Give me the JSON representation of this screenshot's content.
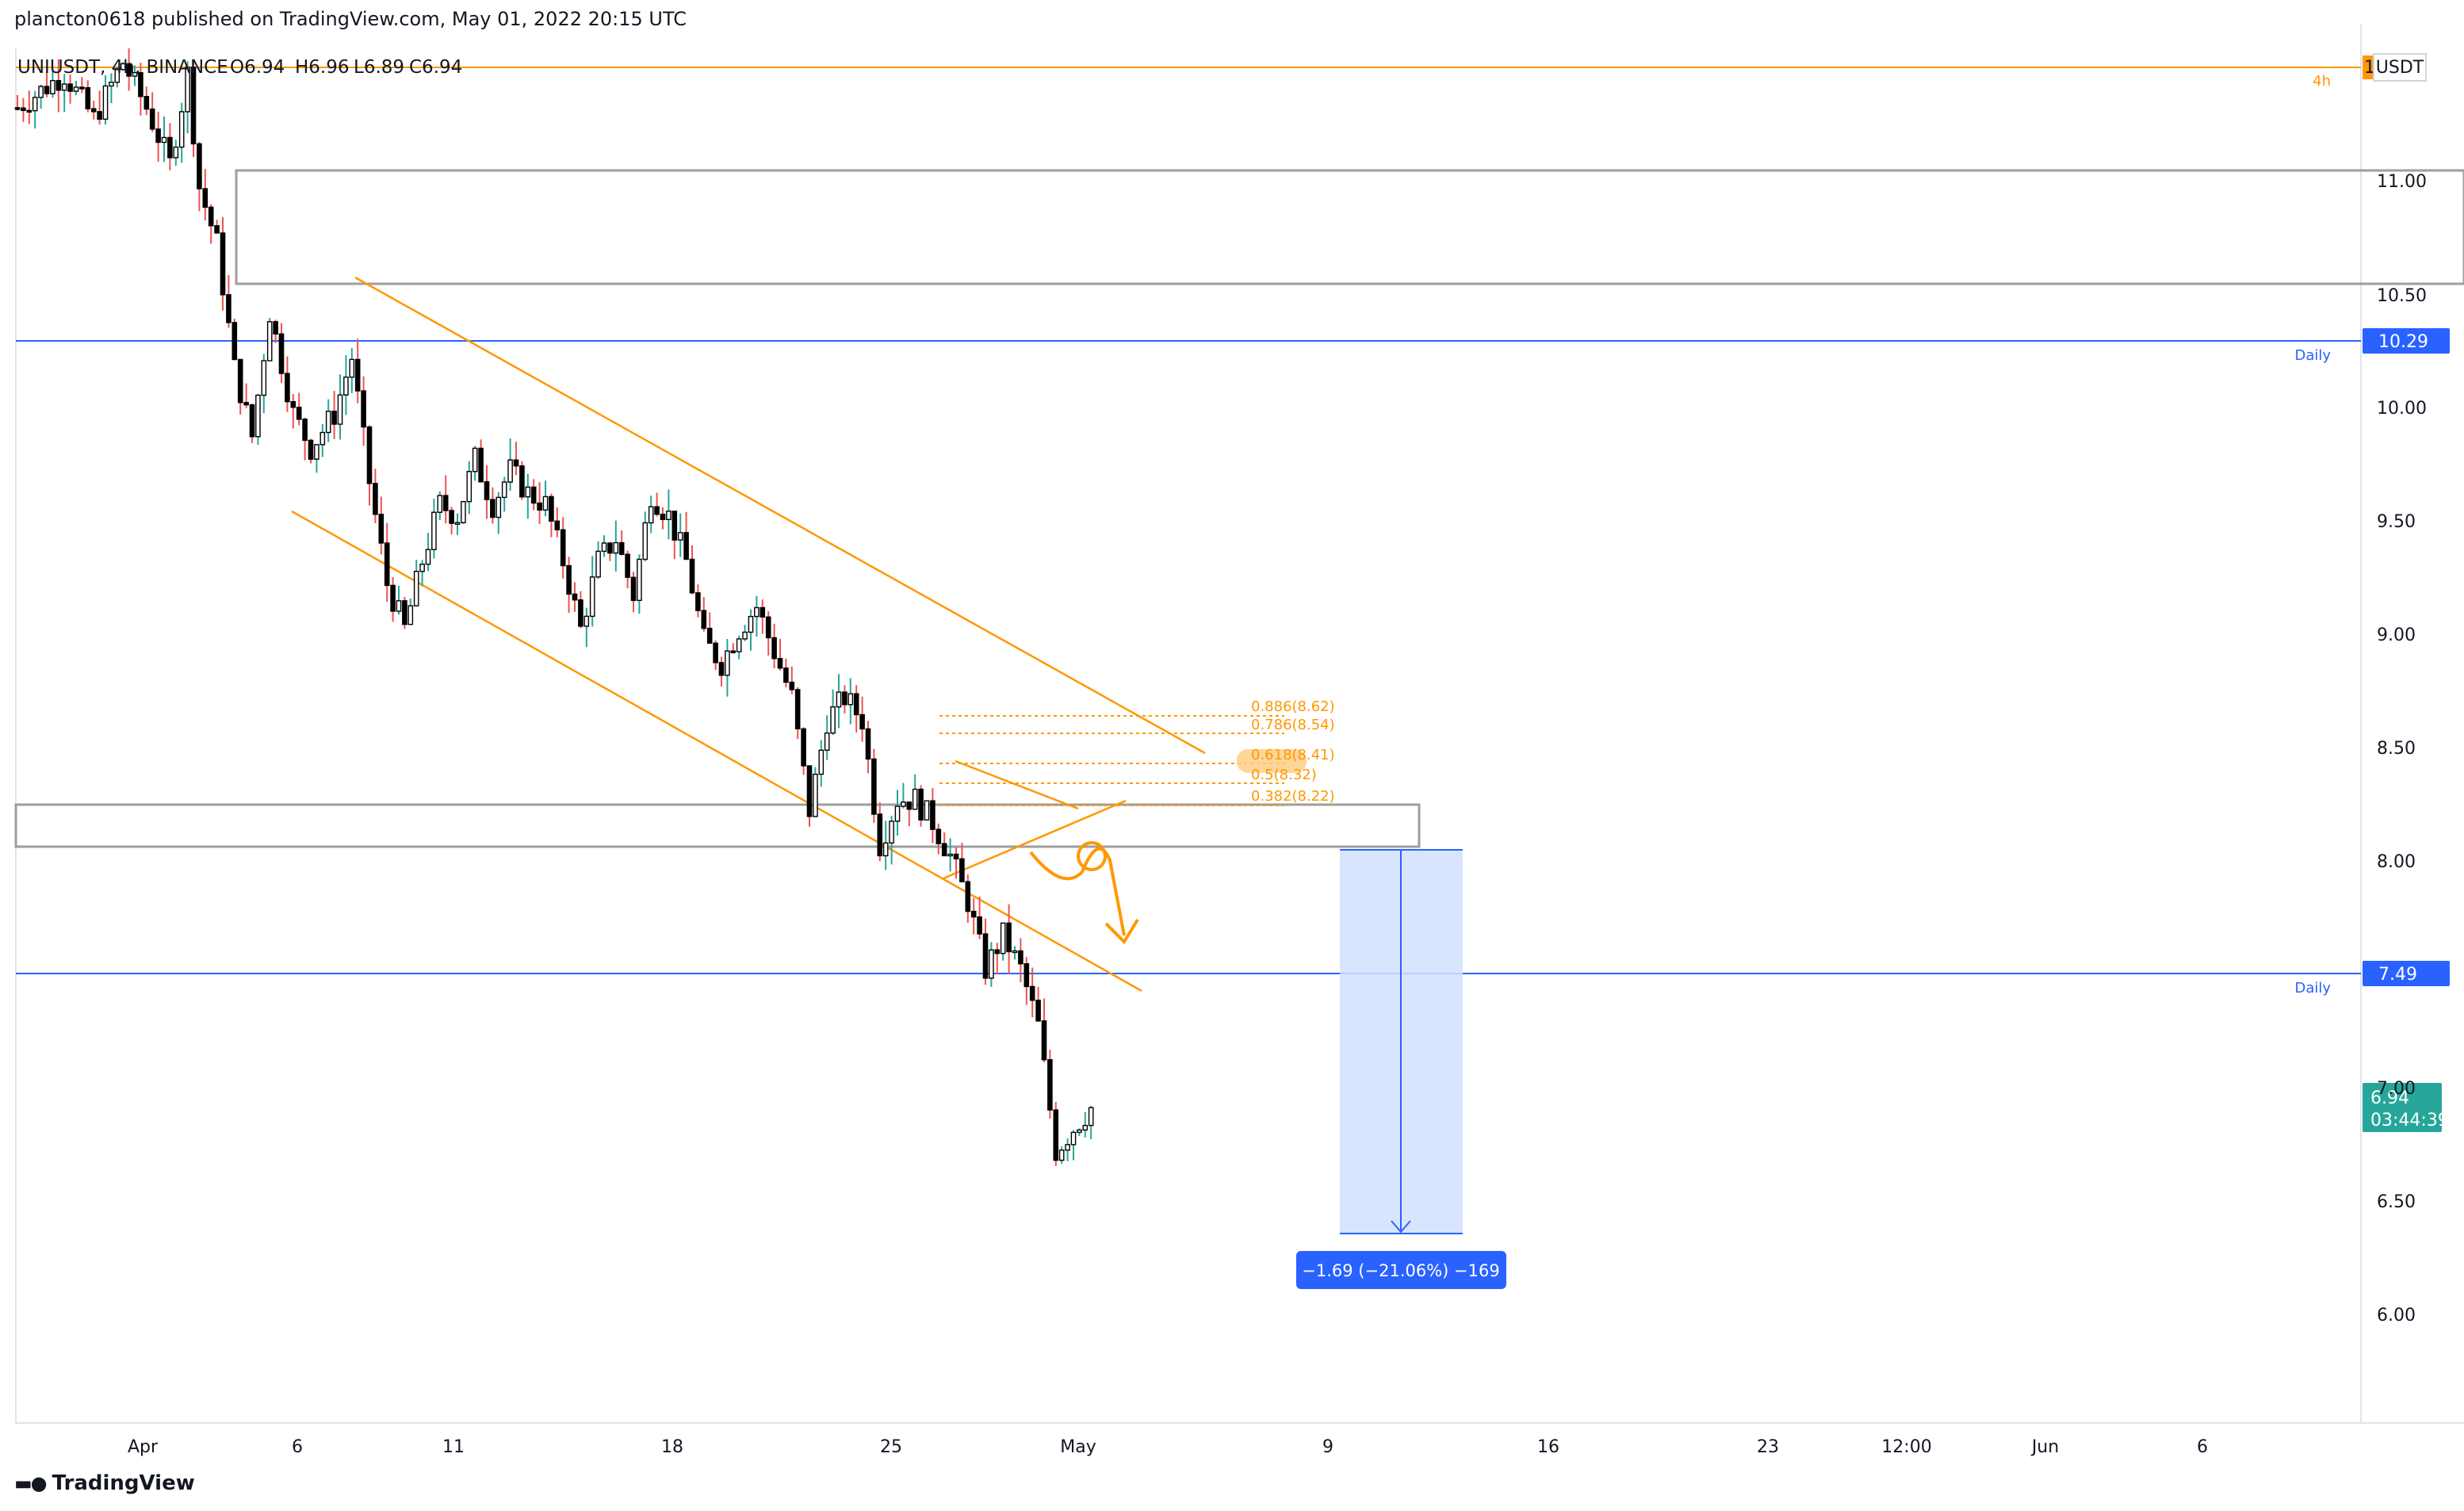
{
  "header": {
    "published": "plancton0618 published on TradingView.com, May 01, 2022 20:15 UTC"
  },
  "symbol_bar": {
    "symbol": "UNIUSDT, 4h, BINANCE",
    "open": "O6.94",
    "high": "H6.96",
    "low": "L6.89",
    "close": "C6.94"
  },
  "price_tags": {
    "top_label": "1",
    "currency": "USDT",
    "daily_upper": "10.29",
    "daily_lower": "7.49",
    "last_price": "6.94",
    "countdown": "03:44:39"
  },
  "line_labels": {
    "h4": "4h",
    "daily_upper": "Daily",
    "daily_lower": "Daily"
  },
  "fib_labels": [
    "0.886(8.62)",
    "0.786(8.54)",
    "0.618(8.41)",
    "0.5(8.32)",
    "0.382(8.22)"
  ],
  "measure_label": "−1.69 (−21.06%) −169",
  "footer": {
    "brand": "TradingView"
  },
  "colors": {
    "up": "#26a69a",
    "down": "#ef5350",
    "body": "#000000",
    "orange": "#ff9800",
    "blue": "#2962ff",
    "zone_gray": "#888888",
    "measure_fill": "#d2e0ff",
    "last_price_bg": "#26a69a"
  },
  "chart_data": {
    "type": "candlestick",
    "symbol": "UNIUSDT",
    "interval": "4h",
    "exchange": "BINANCE",
    "y_axis": {
      "ticks": [
        "11.00",
        "10.50",
        "10.00",
        "9.50",
        "9.00",
        "8.50",
        "8.00",
        "7.00",
        "6.50",
        "6.00"
      ],
      "range": [
        5.5,
        11.55
      ]
    },
    "x_axis": {
      "ticks": [
        "Apr",
        "6",
        "11",
        "18",
        "25",
        "May",
        "9",
        "16",
        "23",
        "12:00",
        "Jun",
        "6"
      ]
    },
    "horizontal_lines": [
      {
        "label": "4h",
        "value": 11.5,
        "color": "orange"
      },
      {
        "label": "Daily",
        "value": 10.29,
        "color": "blue"
      },
      {
        "label": "Daily",
        "value": 7.49,
        "color": "blue"
      }
    ],
    "zones": [
      {
        "from": 10.55,
        "to": 11.05
      },
      {
        "from": 8.05,
        "to": 8.24
      }
    ],
    "fibonacci": [
      {
        "level": 0.886,
        "value": 8.62
      },
      {
        "level": 0.786,
        "value": 8.54
      },
      {
        "level": 0.618,
        "value": 8.41
      },
      {
        "level": 0.5,
        "value": 8.32
      },
      {
        "level": 0.382,
        "value": 8.22
      }
    ],
    "measure": {
      "from": 8.03,
      "to": 6.34,
      "change": -1.69,
      "percent": -21.06,
      "ticks": -169
    },
    "last": {
      "open": 6.94,
      "high": 6.96,
      "low": 6.89,
      "close": 6.94
    },
    "path": [
      [
        0,
        11.35
      ],
      [
        8,
        11.5
      ],
      [
        13,
        11.3
      ],
      [
        18,
        11.55
      ],
      [
        22,
        11.35
      ],
      [
        26,
        11.1
      ],
      [
        29,
        11.5
      ],
      [
        31,
        11.0
      ],
      [
        34,
        10.75
      ],
      [
        37,
        10.2
      ],
      [
        40,
        9.9
      ],
      [
        43,
        10.45
      ],
      [
        47,
        10.0
      ],
      [
        50,
        9.85
      ],
      [
        54,
        10.0
      ],
      [
        57,
        10.25
      ],
      [
        60,
        9.7
      ],
      [
        63,
        9.25
      ],
      [
        66,
        9.05
      ],
      [
        69,
        9.35
      ],
      [
        72,
        9.6
      ],
      [
        75,
        9.55
      ],
      [
        78,
        9.8
      ],
      [
        81,
        9.6
      ],
      [
        84,
        9.75
      ],
      [
        87,
        9.65
      ],
      [
        90,
        9.6
      ],
      [
        93,
        9.35
      ],
      [
        96,
        9.05
      ],
      [
        99,
        9.35
      ],
      [
        102,
        9.45
      ],
      [
        105,
        9.2
      ],
      [
        108,
        9.65
      ],
      [
        111,
        9.55
      ],
      [
        114,
        9.35
      ],
      [
        117,
        9.0
      ],
      [
        120,
        8.9
      ],
      [
        123,
        9.05
      ],
      [
        126,
        9.15
      ],
      [
        129,
        8.95
      ],
      [
        132,
        8.75
      ],
      [
        135,
        8.25
      ],
      [
        138,
        8.65
      ],
      [
        141,
        8.75
      ],
      [
        144,
        8.65
      ],
      [
        147,
        8.1
      ],
      [
        150,
        8.3
      ],
      [
        153,
        8.3
      ],
      [
        156,
        8.2
      ],
      [
        159,
        8.05
      ],
      [
        162,
        7.85
      ],
      [
        165,
        7.55
      ],
      [
        168,
        7.7
      ],
      [
        171,
        7.55
      ],
      [
        174,
        7.3
      ],
      [
        177,
        6.75
      ],
      [
        180,
        6.85
      ],
      [
        183,
        6.94
      ]
    ]
  }
}
